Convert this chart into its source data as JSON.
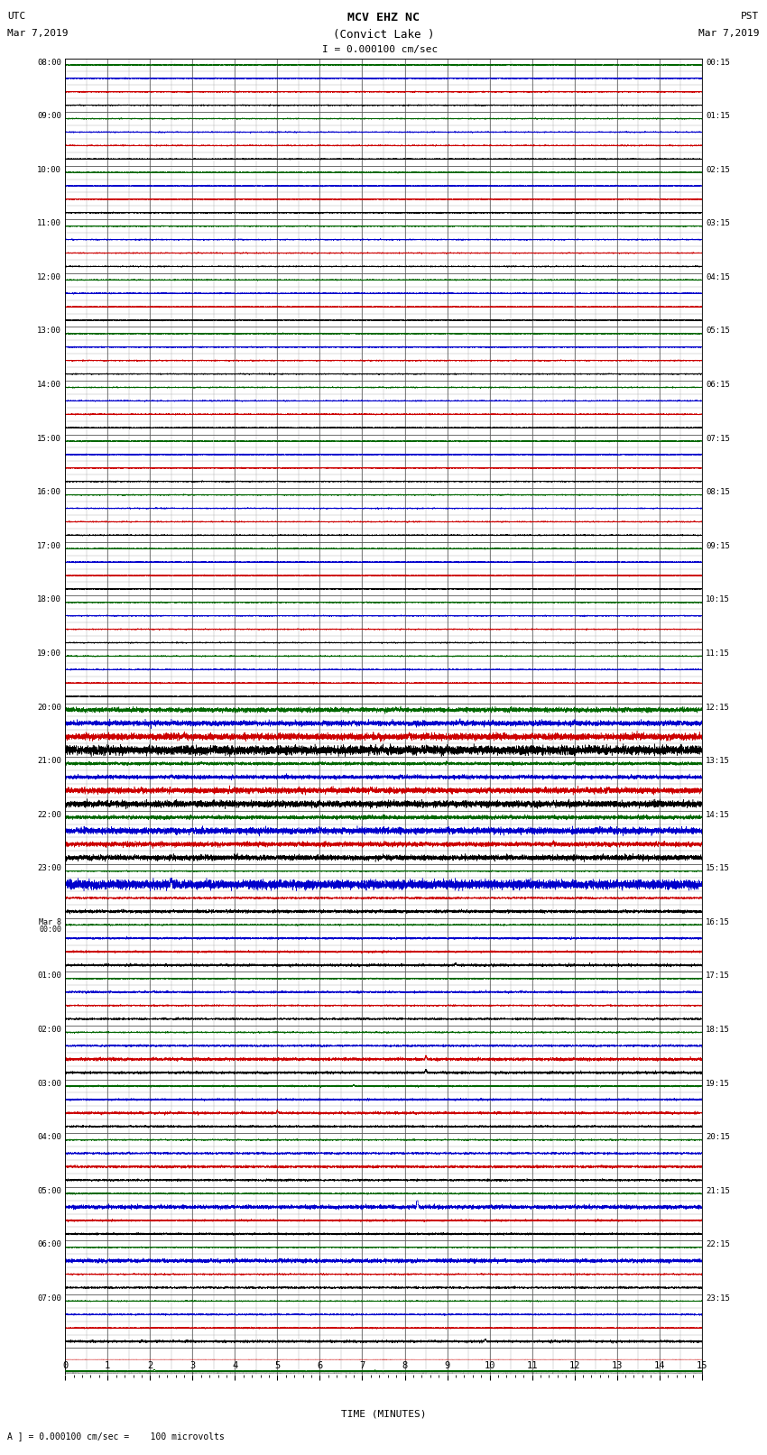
{
  "title_line1": "MCV EHZ NC",
  "title_line2": "(Convict Lake )",
  "title_line3": "I = 0.000100 cm/sec",
  "left_label_top": "UTC",
  "left_label_date": "Mar 7,2019",
  "right_label_top": "PST",
  "right_label_date": "Mar 7,2019",
  "xlabel": "TIME (MINUTES)",
  "bottom_note": "A ] = 0.000100 cm/sec =    100 microvolts",
  "xlim": [
    0,
    15
  ],
  "num_trace_rows": 24,
  "row_labels_left": [
    "08:00",
    "09:00",
    "10:00",
    "11:00",
    "12:00",
    "13:00",
    "14:00",
    "15:00",
    "16:00",
    "17:00",
    "18:00",
    "19:00",
    "20:00",
    "21:00",
    "22:00",
    "23:00",
    "Mar 8\n00:00",
    "01:00",
    "02:00",
    "03:00",
    "04:00",
    "05:00",
    "06:00",
    "07:00"
  ],
  "row_labels_right": [
    "00:15",
    "01:15",
    "02:15",
    "03:15",
    "04:15",
    "05:15",
    "06:15",
    "07:15",
    "08:15",
    "09:15",
    "10:15",
    "11:15",
    "12:15",
    "13:15",
    "14:15",
    "15:15",
    "16:15",
    "17:15",
    "18:15",
    "19:15",
    "20:15",
    "21:15",
    "22:15",
    "23:15"
  ],
  "subtraces_per_row": 4,
  "subtrace_colors": [
    "#000000",
    "#cc0000",
    "#0000cc",
    "#006600"
  ],
  "bg_color": "#ffffff",
  "grid_major_color": "#555555",
  "grid_minor_color": "#aaaaaa"
}
